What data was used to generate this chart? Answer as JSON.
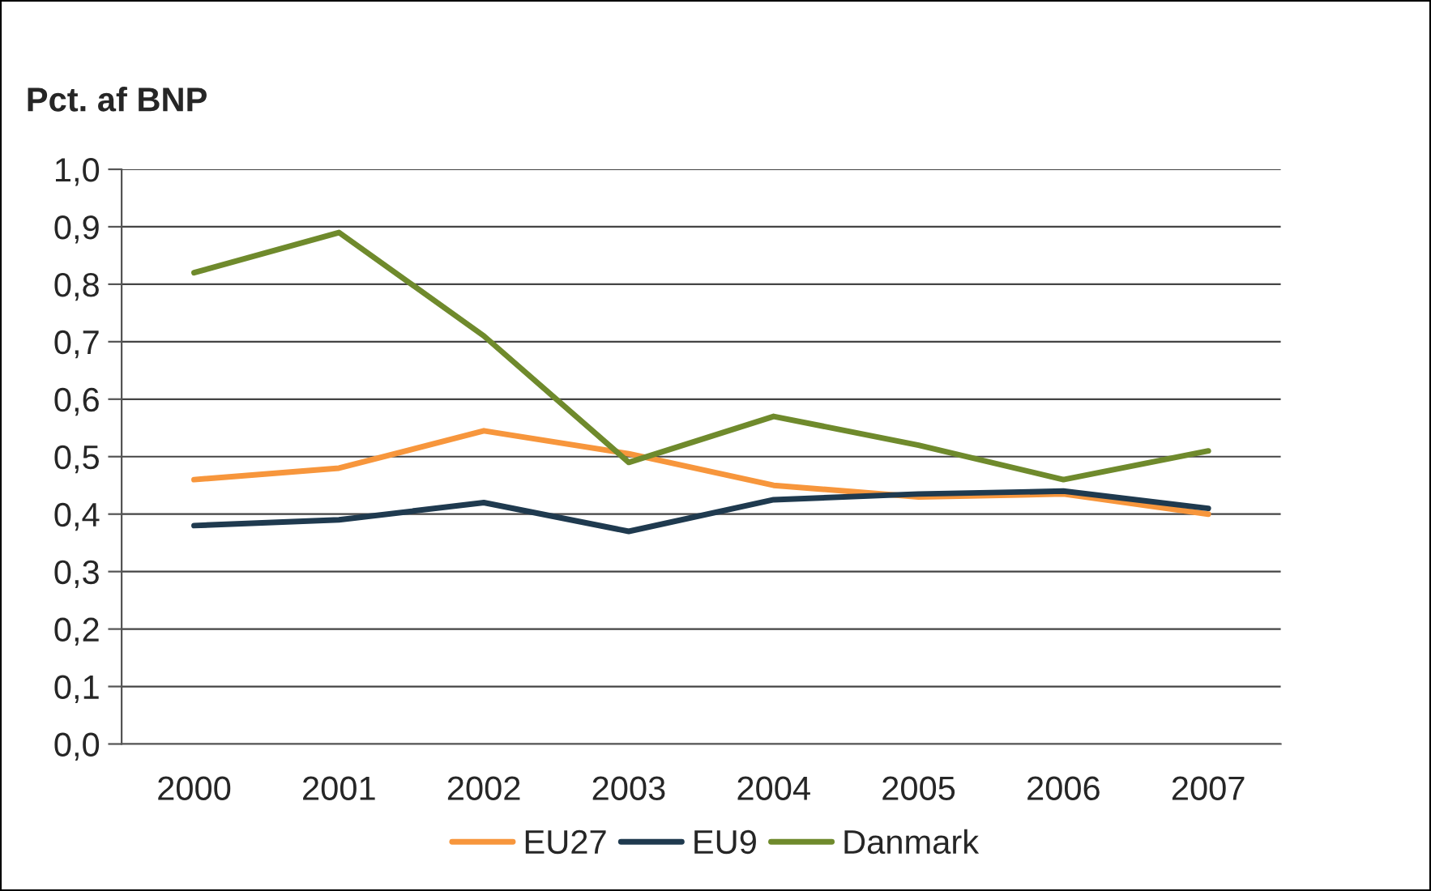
{
  "chart_data": {
    "type": "line",
    "ylabel": "Pct. af BNP",
    "categories": [
      "2000",
      "2001",
      "2002",
      "2003",
      "2004",
      "2005",
      "2006",
      "2007"
    ],
    "series": [
      {
        "name": "EU27",
        "color": "#f7963c",
        "values": [
          0.46,
          0.48,
          0.545,
          0.505,
          0.45,
          0.43,
          0.435,
          0.4
        ]
      },
      {
        "name": "EU9",
        "color": "#1f3a4f",
        "values": [
          0.38,
          0.39,
          0.42,
          0.37,
          0.425,
          0.435,
          0.44,
          0.41
        ]
      },
      {
        "name": "Danmark",
        "color": "#6f8a2c",
        "values": [
          0.82,
          0.89,
          0.71,
          0.49,
          0.57,
          0.52,
          0.46,
          0.51
        ]
      }
    ],
    "ylim": [
      0,
      1.0
    ],
    "yticks": [
      {
        "value": 0,
        "label": "0,0"
      },
      {
        "value": 0.1,
        "label": "0,1"
      },
      {
        "value": 0.2,
        "label": "0,2"
      },
      {
        "value": 0.3,
        "label": "0,3"
      },
      {
        "value": 0.4,
        "label": "0,4"
      },
      {
        "value": 0.5,
        "label": "0,5"
      },
      {
        "value": 0.6,
        "label": "0,6"
      },
      {
        "value": 0.7,
        "label": "0,7"
      },
      {
        "value": 0.8,
        "label": "0,8"
      },
      {
        "value": 0.9,
        "label": "0,9"
      },
      {
        "value": 1.0,
        "label": "1,0"
      }
    ],
    "grid": "y",
    "legend": "bottom",
    "marker": "none",
    "line_style": "solid"
  }
}
